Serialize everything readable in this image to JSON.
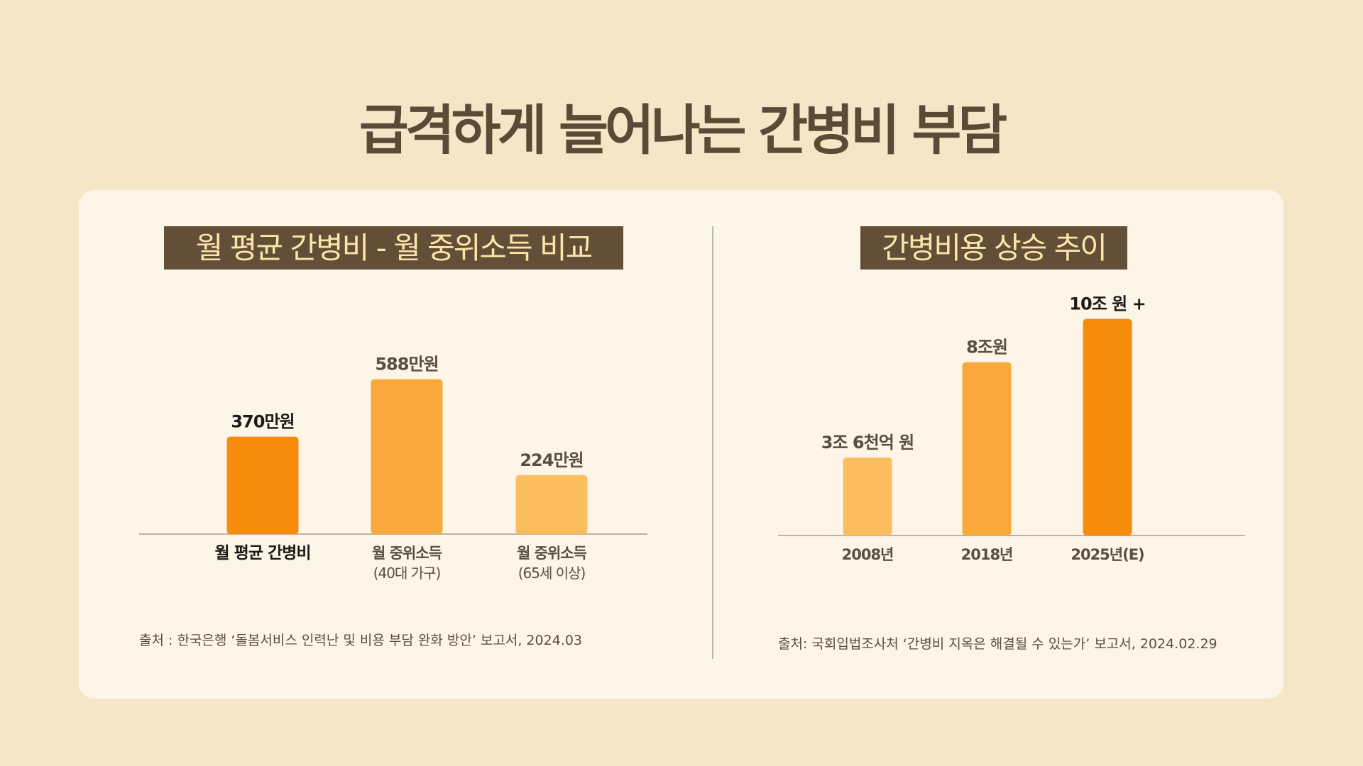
{
  "page": {
    "title": "급격하게 늘어나는 간병비 부담"
  },
  "colors": {
    "background": "#f6e6c8",
    "card": "#fcf5e8",
    "title_box": "#634f38",
    "title_box_text": "#fbe6a8",
    "orange_dark": "#f78b0c",
    "orange_mid": "#f9a93c",
    "orange_light": "#fbbd5e"
  },
  "chart_data": [
    {
      "type": "bar",
      "title": "월 평균 간병비 - 월 중위소득 비교",
      "categories": [
        {
          "label": "월 평균 간병비",
          "sublabel": ""
        },
        {
          "label": "월 중위소득",
          "sublabel": "(40대 가구)"
        },
        {
          "label": "월 중위소득",
          "sublabel": "(65세 이상)"
        }
      ],
      "values": [
        370,
        588,
        224
      ],
      "value_labels": [
        "370만원",
        "588만원",
        "224만원"
      ],
      "unit": "만원",
      "bar_colors": [
        "#f78b0c",
        "#f9a93c",
        "#fbbd5e"
      ],
      "highlight_index": 0,
      "ylim": [
        0,
        800
      ],
      "grid": false,
      "source": "출처 : 한국은행 ‘돌봄서비스 인력난 및 비용 부담 완화 방안’ 보고서, 2024.03"
    },
    {
      "type": "bar",
      "title": "간병비용 상승 추이",
      "categories": [
        {
          "label": "2008년",
          "sublabel": ""
        },
        {
          "label": "2018년",
          "sublabel": ""
        },
        {
          "label": "2025년(E)",
          "sublabel": ""
        }
      ],
      "values": [
        3.6,
        8,
        10
      ],
      "value_labels": [
        "3조 6천억 원",
        "8조원",
        "10조 원 +"
      ],
      "unit": "조 원",
      "bar_colors": [
        "#fbbd5e",
        "#f9a93c",
        "#f78b0c"
      ],
      "highlight_index": 2,
      "ylim": [
        0,
        11.2
      ],
      "grid": false,
      "source": "출처: 국회입법조사처 ‘간병비 지옥은 해결될 수 있는가’ 보고서, 2024.02.29"
    }
  ]
}
